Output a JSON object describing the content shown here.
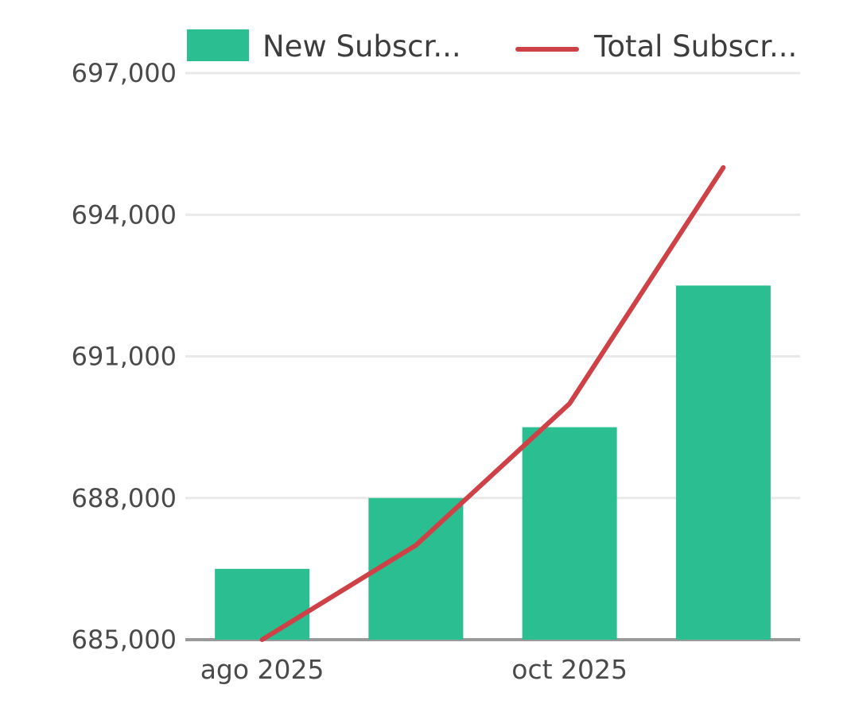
{
  "legend": {
    "items": [
      {
        "label": "New Subscr...",
        "swatch": "bar-swatch",
        "color": "#2bbe90"
      },
      {
        "label": "Total Subscr...",
        "swatch": "line-swatch",
        "color": "#ce4247"
      }
    ]
  },
  "colors": {
    "grid": "#e9e9e9",
    "axis_line": "#9a9a9a",
    "tick_text": "#4a4a4a",
    "background": "#ffffff"
  },
  "chart_data": {
    "type": "combo",
    "title": "",
    "categories": [
      "ago 2025",
      "",
      "oct 2025",
      ""
    ],
    "x_tick_labels_visible": [
      "ago 2025",
      "oct 2025"
    ],
    "series": [
      {
        "name": "New Subscr...",
        "type": "bar",
        "color": "#2bbe90",
        "axis": "hidden-secondary",
        "values": [
          1000,
          2000,
          3000,
          5000
        ]
      },
      {
        "name": "Total Subscr...",
        "type": "line",
        "color": "#ce4247",
        "axis": "left",
        "values": [
          685000,
          687000,
          690000,
          695000
        ]
      }
    ],
    "y_axis": {
      "min": 685000,
      "max": 697000,
      "ticks": [
        {
          "value": 697000,
          "label": "697,000"
        },
        {
          "value": 694000,
          "label": "694,000"
        },
        {
          "value": 691000,
          "label": "691,000"
        },
        {
          "value": 688000,
          "label": "688,000"
        },
        {
          "value": 685000,
          "label": "685,000"
        }
      ]
    },
    "hidden_bar_axis": {
      "min": 0,
      "max": 8000
    },
    "grid": "horizontal",
    "legend_position": "top"
  }
}
